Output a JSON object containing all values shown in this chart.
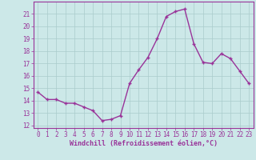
{
  "x": [
    0,
    1,
    2,
    3,
    4,
    5,
    6,
    7,
    8,
    9,
    10,
    11,
    12,
    13,
    14,
    15,
    16,
    17,
    18,
    19,
    20,
    21,
    22,
    23
  ],
  "y": [
    14.7,
    14.1,
    14.1,
    13.8,
    13.8,
    13.5,
    13.2,
    12.4,
    12.5,
    12.8,
    15.4,
    16.5,
    17.5,
    19.0,
    20.8,
    21.2,
    21.4,
    18.6,
    17.1,
    17.0,
    17.8,
    17.4,
    16.4,
    15.4
  ],
  "line_color": "#993399",
  "marker_color": "#993399",
  "bg_color": "#cce8e8",
  "grid_color": "#aacccc",
  "xlabel": "Windchill (Refroidissement éolien,°C)",
  "ylim": [
    11.8,
    22
  ],
  "xlim": [
    -0.5,
    23.5
  ],
  "yticks": [
    12,
    13,
    14,
    15,
    16,
    17,
    18,
    19,
    20,
    21
  ],
  "xticks": [
    0,
    1,
    2,
    3,
    4,
    5,
    6,
    7,
    8,
    9,
    10,
    11,
    12,
    13,
    14,
    15,
    16,
    17,
    18,
    19,
    20,
    21,
    22,
    23
  ],
  "text_color": "#993399",
  "font": "monospace",
  "linewidth": 1.0,
  "markersize": 2.5,
  "tick_fontsize": 5.5,
  "xlabel_fontsize": 6.0
}
